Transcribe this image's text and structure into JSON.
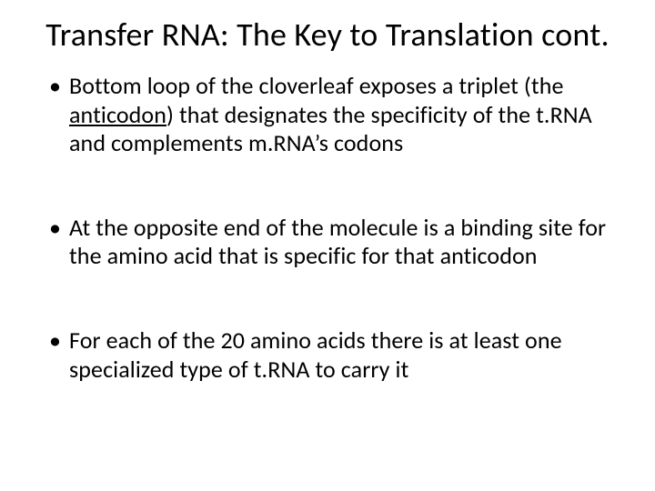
{
  "slide": {
    "title": "Transfer RNA:  The Key to Translation cont.",
    "title_fontsize": 36,
    "background_color": "#ffffff",
    "text_color": "#000000",
    "bullets": [
      {
        "pre": "Bottom loop of the cloverleaf exposes a triplet (the ",
        "underlined": "anticodon",
        "post": ") that designates the specificity of the t.RNA and complements m.RNA’s codons"
      },
      {
        "pre": "At the opposite end of the molecule is a binding site for the amino acid that is specific for that anticodon",
        "underlined": "",
        "post": ""
      },
      {
        "pre": "For each of the 20 amino acids there is at least one specialized type of t.RNA to carry it",
        "underlined": "",
        "post": ""
      }
    ],
    "bullet_fontsize": 26
  }
}
